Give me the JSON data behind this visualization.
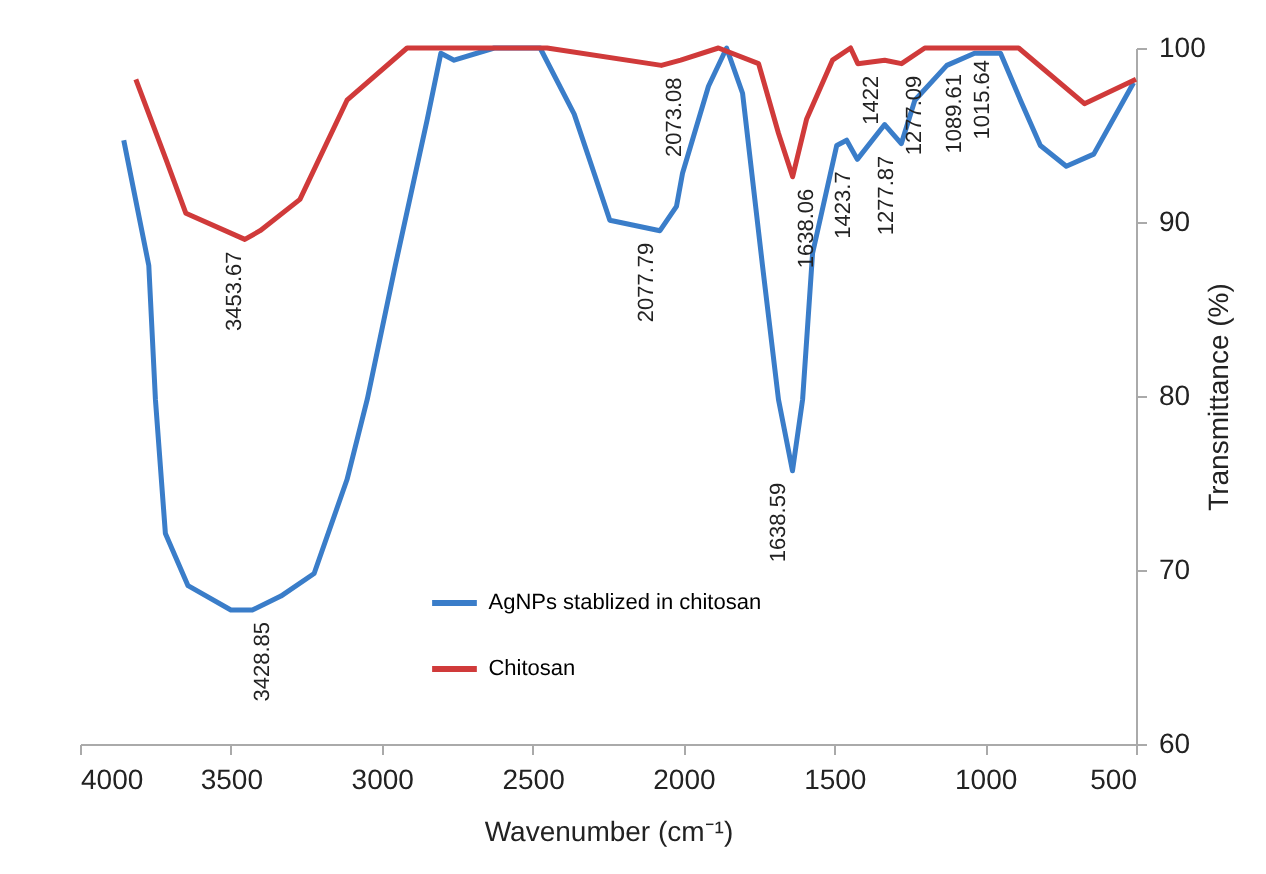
{
  "chart_data": {
    "type": "line",
    "xlabel": "Wavenumber (cm⁻¹)",
    "ylabel": "Transmittance (%)",
    "xlim": [
      4000,
      500
    ],
    "xticks": [
      {
        "value": 4000,
        "label": "4000"
      },
      {
        "value": 3500,
        "label": "3500"
      },
      {
        "value": 3000,
        "label": "3000"
      },
      {
        "value": 2500,
        "label": "2500"
      },
      {
        "value": 2000,
        "label": "2000"
      },
      {
        "value": 1500,
        "label": "1500"
      },
      {
        "value": 1000,
        "label": "1000"
      },
      {
        "value": 500,
        "label": "500"
      }
    ],
    "ylim": [
      60,
      100
    ],
    "yticks": [
      60,
      70,
      80,
      90,
      100
    ],
    "grid": false,
    "legend": "bottom left",
    "series": [
      {
        "name": "AgNPs stablized in chitosan",
        "color": "#3a7dc9",
        "x": [
          3855,
          3772,
          3750,
          3717,
          3642,
          3500,
          3428.85,
          3334,
          3224,
          3115,
          3048,
          2955,
          2849,
          2804,
          2760,
          2627,
          2475,
          2362,
          2296,
          2244,
          2077.79,
          2023,
          2003,
          1917,
          1857,
          1804,
          1738,
          1685,
          1638.59,
          1605,
          1572,
          1492,
          1459,
          1423.7,
          1333,
          1277.87,
          1233,
          1127,
          1035,
          949,
          883,
          817,
          731,
          640,
          508
        ],
        "values": [
          94.7,
          87.5,
          79.8,
          72.1,
          69.1,
          67.7,
          67.7,
          68.5,
          69.8,
          75.2,
          79.8,
          87.5,
          95.9,
          99.7,
          99.3,
          100,
          100,
          96.2,
          92.8,
          90.1,
          89.5,
          90.9,
          92.8,
          97.8,
          100,
          97.4,
          87.5,
          79.8,
          75.7,
          79.8,
          88.2,
          94.4,
          94.7,
          93.6,
          95.6,
          94.5,
          97,
          99,
          99.7,
          99.7,
          97,
          94.4,
          93.2,
          93.9,
          98
        ]
      },
      {
        "name": "Chitosan",
        "color": "#d03a3a",
        "x": [
          3815,
          3715,
          3649,
          3453.67,
          3403,
          3271,
          3115,
          2916,
          2452,
          2073.08,
          2009,
          1884,
          1751,
          1685,
          1638.06,
          1592,
          1506,
          1446,
          1422,
          1333,
          1277.09,
          1200,
          889,
          671,
          500
        ],
        "values": [
          98.2,
          93.6,
          90.5,
          89,
          89.5,
          91.3,
          97,
          100,
          100,
          99,
          99.3,
          100,
          99.1,
          95.1,
          92.6,
          95.9,
          99.3,
          100,
          99.1,
          99.3,
          99.1,
          100,
          100,
          96.8,
          98.2
        ]
      }
    ],
    "annotations": [
      {
        "text": "3453.67",
        "x": 3453.67,
        "y": 89
      },
      {
        "text": "3428.85",
        "x": 3428.85,
        "y": 67.7
      },
      {
        "text": "2073.08",
        "x": 2073.08,
        "y": 99
      },
      {
        "text": "2077.79",
        "x": 2077.79,
        "y": 89.5
      },
      {
        "text": "1638.06",
        "x": 1638.06,
        "y": 92.6
      },
      {
        "text": "1638.59",
        "x": 1638.59,
        "y": 75.7
      },
      {
        "text": "1422",
        "x": 1422,
        "y": 99.1
      },
      {
        "text": "1423.7",
        "x": 1423.7,
        "y": 93.6
      },
      {
        "text": "1277.09",
        "x": 1277.09,
        "y": 99.1
      },
      {
        "text": "1277.87",
        "x": 1277.87,
        "y": 94.5
      },
      {
        "text": "1089.61",
        "x": 1089.61,
        "y": 99.2
      },
      {
        "text": "1015.64",
        "x": 1015.64,
        "y": 100
      }
    ]
  }
}
